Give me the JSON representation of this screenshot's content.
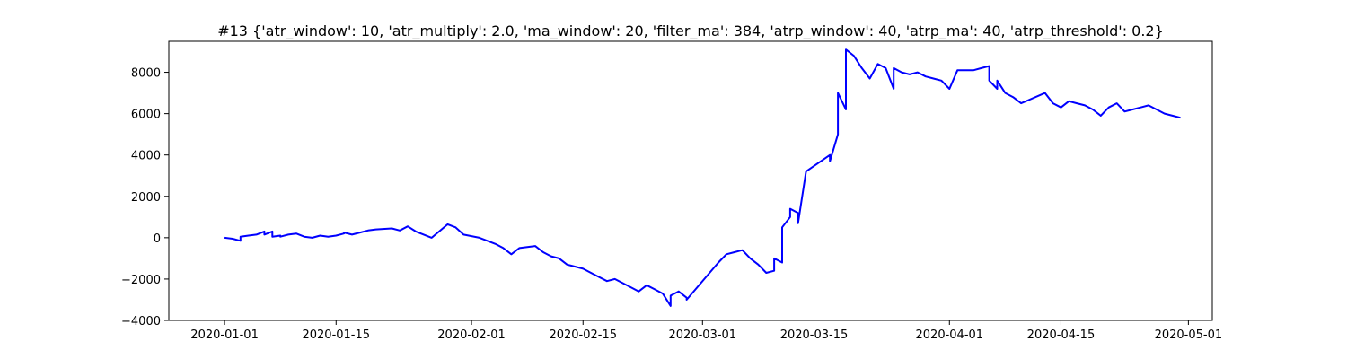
{
  "chart_data": {
    "type": "line",
    "title": "#13 {'atr_window': 10, 'atr_multiply': 2.0, 'ma_window': 20, 'filter_ma': 384, 'atrp_window': 40, 'atrp_ma': 40, 'atrp_threshold': 0.2}",
    "xlabel": "",
    "ylabel": "",
    "xlim": [
      "2019-12-25",
      "2020-05-04"
    ],
    "ylim": [
      -4000,
      9500
    ],
    "x_ticks": [
      "2020-01-01",
      "2020-01-15",
      "2020-02-01",
      "2020-02-15",
      "2020-03-01",
      "2020-03-15",
      "2020-04-01",
      "2020-04-15",
      "2020-05-01"
    ],
    "y_ticks": [
      -4000,
      -2000,
      0,
      2000,
      4000,
      6000,
      8000
    ],
    "grid": false,
    "colors": {
      "line": "#0000ff"
    },
    "series": [
      {
        "x": [
          "2020-01-01",
          "2020-01-02",
          "2020-01-03",
          "2020-01-03",
          "2020-01-04",
          "2020-01-05",
          "2020-01-06",
          "2020-01-06",
          "2020-01-07",
          "2020-01-07",
          "2020-01-08",
          "2020-01-08",
          "2020-01-09",
          "2020-01-10",
          "2020-01-11",
          "2020-01-12",
          "2020-01-13",
          "2020-01-14",
          "2020-01-15",
          "2020-01-16",
          "2020-01-16",
          "2020-01-17",
          "2020-01-18",
          "2020-01-19",
          "2020-01-20",
          "2020-01-22",
          "2020-01-23",
          "2020-01-24",
          "2020-01-25",
          "2020-01-27",
          "2020-01-29",
          "2020-01-30",
          "2020-01-31",
          "2020-02-02",
          "2020-02-04",
          "2020-02-05",
          "2020-02-06",
          "2020-02-07",
          "2020-02-09",
          "2020-02-10",
          "2020-02-11",
          "2020-02-12",
          "2020-02-13",
          "2020-02-15",
          "2020-02-16",
          "2020-02-17",
          "2020-02-18",
          "2020-02-19",
          "2020-02-20",
          "2020-02-21",
          "2020-02-22",
          "2020-02-23",
          "2020-02-24",
          "2020-02-25",
          "2020-02-26",
          "2020-02-26",
          "2020-02-27",
          "2020-02-28",
          "2020-02-28",
          "2020-03-03",
          "2020-03-04",
          "2020-03-05",
          "2020-03-06",
          "2020-03-07",
          "2020-03-08",
          "2020-03-09",
          "2020-03-10",
          "2020-03-10",
          "2020-03-11",
          "2020-03-11",
          "2020-03-12",
          "2020-03-12",
          "2020-03-13",
          "2020-03-13",
          "2020-03-14",
          "2020-03-17",
          "2020-03-17",
          "2020-03-18",
          "2020-03-18",
          "2020-03-18",
          "2020-03-19",
          "2020-03-19",
          "2020-03-19",
          "2020-03-20",
          "2020-03-21",
          "2020-03-22",
          "2020-03-23",
          "2020-03-24",
          "2020-03-25",
          "2020-03-25",
          "2020-03-26",
          "2020-03-27",
          "2020-03-28",
          "2020-03-29",
          "2020-03-30",
          "2020-03-31",
          "2020-04-01",
          "2020-04-02",
          "2020-04-04",
          "2020-04-05",
          "2020-04-06",
          "2020-04-06",
          "2020-04-07",
          "2020-04-07",
          "2020-04-08",
          "2020-04-09",
          "2020-04-10",
          "2020-04-13",
          "2020-04-14",
          "2020-04-15",
          "2020-04-16",
          "2020-04-17",
          "2020-04-18",
          "2020-04-19",
          "2020-04-20",
          "2020-04-21",
          "2020-04-22",
          "2020-04-23",
          "2020-04-24",
          "2020-04-25",
          "2020-04-26",
          "2020-04-28",
          "2020-04-29",
          "2020-04-30"
        ],
        "y": [
          0,
          -50,
          -150,
          50,
          100,
          150,
          300,
          150,
          300,
          50,
          100,
          50,
          150,
          200,
          50,
          0,
          100,
          50,
          100,
          200,
          250,
          150,
          250,
          350,
          400,
          450,
          350,
          550,
          300,
          0,
          650,
          500,
          150,
          0,
          -300,
          -500,
          -800,
          -500,
          -400,
          -700,
          -900,
          -1000,
          -1300,
          -1500,
          -1700,
          -1900,
          -2100,
          -2000,
          -2200,
          -2400,
          -2600,
          -2300,
          -2500,
          -2700,
          -3300,
          -2800,
          -2600,
          -2900,
          -3000,
          -1200,
          -800,
          -700,
          -600,
          -1000,
          -1300,
          -1700,
          -1600,
          -1000,
          -1200,
          500,
          1000,
          1400,
          1200,
          700,
          3200,
          4000,
          3700,
          5000,
          6500,
          7000,
          6200,
          7500,
          9100,
          8800,
          8200,
          7700,
          8400,
          8200,
          7200,
          8200,
          8000,
          7900,
          8000,
          7800,
          7700,
          7600,
          7200,
          8100,
          8100,
          8200,
          8300,
          7600,
          7200,
          7600,
          7000,
          6800,
          6500,
          7000,
          6500,
          6300,
          6600,
          6500,
          6400,
          6200,
          5900,
          6300,
          6500,
          6100,
          6200,
          6300,
          6400,
          6000,
          5900,
          5800
        ]
      }
    ]
  }
}
